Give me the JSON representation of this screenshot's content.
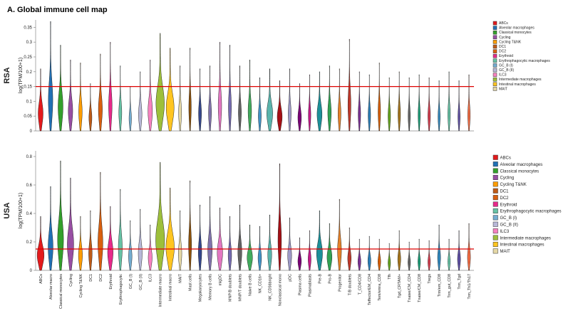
{
  "title": "A. Global immune cell map",
  "chart_data": {
    "type": "violin",
    "title": "A. Global immune cell map",
    "xlabel": "",
    "ylabel": "log(TPM/100+1)",
    "grid": false,
    "legend_position": "right",
    "threshold_line_color": "#dd0000",
    "categories": [
      {
        "name": "ABCs",
        "color": "#e31a1c"
      },
      {
        "name": "Alveolar macro",
        "color": "#2171b5"
      },
      {
        "name": "Classical monocytes",
        "color": "#33a02c"
      },
      {
        "name": "Cycling",
        "color": "#984ea3"
      },
      {
        "name": "Cycling T&NK",
        "color": "#ff9d00"
      },
      {
        "name": "DC1",
        "color": "#bf5b17"
      },
      {
        "name": "DC2",
        "color": "#d95f0e"
      },
      {
        "name": "Erythroid",
        "color": "#e7298a"
      },
      {
        "name": "Erythrophagocytic",
        "color": "#66c2a5"
      },
      {
        "name": "GC_B (I)",
        "color": "#74add1"
      },
      {
        "name": "GC_B (II)",
        "color": "#b8b8d8"
      },
      {
        "name": "ILC3",
        "color": "#f781bf"
      },
      {
        "name": "Intermediate macro",
        "color": "#9dbf3b"
      },
      {
        "name": "Intestinal macro",
        "color": "#ffc520"
      },
      {
        "name": "MAIT",
        "color": "#e5d8a5"
      },
      {
        "name": "Mast cells",
        "color": "#8c510a"
      },
      {
        "name": "Megakaryocytes",
        "color": "#35478c"
      },
      {
        "name": "Memory B cells",
        "color": "#8073ac"
      },
      {
        "name": "migDC",
        "color": "#e377c2"
      },
      {
        "name": "MNP/B doublets",
        "color": "#756bb1"
      },
      {
        "name": "MNP/T doublets",
        "color": "#636363"
      },
      {
        "name": "Naive B cells",
        "color": "#41ab5d"
      },
      {
        "name": "NK_CD16+",
        "color": "#4292c6"
      },
      {
        "name": "NK_CD56bright",
        "color": "#5ab4ac"
      },
      {
        "name": "Nonclassical mono",
        "color": "#a50f15"
      },
      {
        "name": "pDC",
        "color": "#9e9ac8"
      },
      {
        "name": "Plasma cells",
        "color": "#7a0177"
      },
      {
        "name": "Plasmablasts",
        "color": "#c51b8a"
      },
      {
        "name": "Pre-B",
        "color": "#1c9099"
      },
      {
        "name": "Pro-B",
        "color": "#31a354"
      },
      {
        "name": "Progenitor",
        "color": "#e6822a"
      },
      {
        "name": "T/B doublets",
        "color": "#c0392b"
      },
      {
        "name": "T_CD4/CD8",
        "color": "#7b3294"
      },
      {
        "name": "Teffector/EM_CD4",
        "color": "#2c7fb8"
      },
      {
        "name": "Tem/emra_CD8",
        "color": "#d95f02"
      },
      {
        "name": "Tfh",
        "color": "#66a61e"
      },
      {
        "name": "Tgd_CRTAM+",
        "color": "#a6761d"
      },
      {
        "name": "Tnaive/CM_CD4",
        "color": "#666666"
      },
      {
        "name": "Tnaive/CM_CD8",
        "color": "#1b9e77"
      },
      {
        "name": "Tregs",
        "color": "#d53e4f"
      },
      {
        "name": "Trm/em_CD8",
        "color": "#3288bd"
      },
      {
        "name": "Trm_gut_CD8",
        "color": "#66c2a5"
      },
      {
        "name": "Trm_Tgd",
        "color": "#5e4fa2"
      },
      {
        "name": "Trm_Th1/Th17",
        "color": "#f46d43"
      }
    ],
    "legend": [
      {
        "label": "ABCs",
        "color": "#e31a1c"
      },
      {
        "label": "Alveolar macrophages",
        "color": "#2171b5"
      },
      {
        "label": "Classical monocytes",
        "color": "#33a02c"
      },
      {
        "label": "Cycling",
        "color": "#984ea3"
      },
      {
        "label": "Cycling T&NK",
        "color": "#ff9d00"
      },
      {
        "label": "DC1",
        "color": "#bf5b17"
      },
      {
        "label": "DC2",
        "color": "#d95f0e"
      },
      {
        "label": "Erythroid",
        "color": "#e7298a"
      },
      {
        "label": "Erythrophagocytic macrophages",
        "color": "#66c2a5"
      },
      {
        "label": "GC_B (I)",
        "color": "#74add1"
      },
      {
        "label": "GC_B (II)",
        "color": "#b8b8d8"
      },
      {
        "label": "ILC3",
        "color": "#f781bf"
      },
      {
        "label": "Intermediate macrophages",
        "color": "#9dbf3b"
      },
      {
        "label": "Intestinal macrophages",
        "color": "#ffc520"
      },
      {
        "label": "MAIT",
        "color": "#e5d8a5"
      }
    ],
    "panels": [
      {
        "name": "RSA",
        "ylabel": "log(TPM/100+1)",
        "ymax": 0.375,
        "yticks": [
          0,
          0.05,
          0.1,
          0.15,
          0.2,
          0.25,
          0.3,
          0.35
        ],
        "threshold": 0.15,
        "values": [
          0.21,
          0.37,
          0.29,
          0.24,
          0.23,
          0.16,
          0.26,
          0.3,
          0.22,
          0.15,
          0.2,
          0.24,
          0.33,
          0.28,
          0.22,
          0.28,
          0.21,
          0.22,
          0.3,
          0.29,
          0.22,
          0.24,
          0.18,
          0.21,
          0.17,
          0.21,
          0.16,
          0.19,
          0.2,
          0.22,
          0.21,
          0.31,
          0.2,
          0.19,
          0.23,
          0.18,
          0.2,
          0.18,
          0.19,
          0.18,
          0.17,
          0.2,
          0.17,
          0.19
        ],
        "widths": [
          0.5,
          0.45,
          0.5,
          0.45,
          0.35,
          0.3,
          0.4,
          0.35,
          0.3,
          0.25,
          0.35,
          0.45,
          0.85,
          0.8,
          0.3,
          0.25,
          0.3,
          0.3,
          0.35,
          0.3,
          0.3,
          0.35,
          0.3,
          0.6,
          0.5,
          0.3,
          0.35,
          0.25,
          0.5,
          0.35,
          0.3,
          0.3,
          0.25,
          0.25,
          0.25,
          0.25,
          0.25,
          0.22,
          0.22,
          0.25,
          0.22,
          0.25,
          0.22,
          0.25
        ]
      },
      {
        "name": "USA",
        "ylabel": "log(TPM/100+1)",
        "ymax": 0.84,
        "yticks": [
          0,
          0.2,
          0.4,
          0.6,
          0.8
        ],
        "threshold": 0.15,
        "values": [
          0.38,
          0.59,
          0.77,
          0.65,
          0.38,
          0.42,
          0.69,
          0.45,
          0.57,
          0.35,
          0.43,
          0.32,
          0.76,
          0.58,
          0.42,
          0.63,
          0.46,
          0.52,
          0.44,
          0.38,
          0.46,
          0.32,
          0.31,
          0.39,
          0.75,
          0.37,
          0.23,
          0.28,
          0.42,
          0.33,
          0.5,
          0.3,
          0.22,
          0.24,
          0.22,
          0.19,
          0.28,
          0.2,
          0.22,
          0.21,
          0.32,
          0.22,
          0.28,
          0.33
        ],
        "widths": [
          0.7,
          0.5,
          0.6,
          0.65,
          0.4,
          0.35,
          0.5,
          0.55,
          0.4,
          0.35,
          0.4,
          0.4,
          0.9,
          0.85,
          0.35,
          0.3,
          0.35,
          0.45,
          0.55,
          0.35,
          0.4,
          0.55,
          0.35,
          0.4,
          0.35,
          0.4,
          0.35,
          0.3,
          0.6,
          0.5,
          0.4,
          0.35,
          0.3,
          0.3,
          0.28,
          0.25,
          0.3,
          0.25,
          0.25,
          0.25,
          0.3,
          0.25,
          0.3,
          0.3
        ]
      }
    ]
  }
}
